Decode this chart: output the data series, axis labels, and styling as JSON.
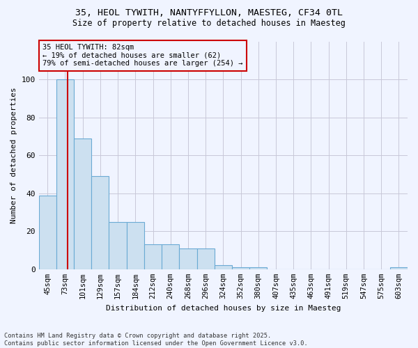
{
  "title1": "35, HEOL TYWITH, NANTYFFYLLON, MAESTEG, CF34 0TL",
  "title2": "Size of property relative to detached houses in Maesteg",
  "xlabel": "Distribution of detached houses by size in Maesteg",
  "ylabel": "Number of detached properties",
  "categories": [
    "45sqm",
    "73sqm",
    "101sqm",
    "129sqm",
    "157sqm",
    "184sqm",
    "212sqm",
    "240sqm",
    "268sqm",
    "296sqm",
    "324sqm",
    "352sqm",
    "380sqm",
    "407sqm",
    "435sqm",
    "463sqm",
    "491sqm",
    "519sqm",
    "547sqm",
    "575sqm",
    "603sqm"
  ],
  "values": [
    39,
    100,
    69,
    49,
    25,
    25,
    13,
    13,
    11,
    11,
    2,
    1,
    1,
    0,
    0,
    0,
    0,
    0,
    0,
    0,
    1
  ],
  "bar_color": "#cce0f0",
  "bar_edge_color": "#6aaad4",
  "vline_color": "#cc0000",
  "vline_pos": 1,
  "annotation_text": "35 HEOL TYWITH: 82sqm\n← 19% of detached houses are smaller (62)\n79% of semi-detached houses are larger (254) →",
  "annotation_box_color": "#cc0000",
  "ylim": [
    0,
    120
  ],
  "yticks": [
    0,
    20,
    40,
    60,
    80,
    100
  ],
  "footer": "Contains HM Land Registry data © Crown copyright and database right 2025.\nContains public sector information licensed under the Open Government Licence v3.0.",
  "bg_color": "#f0f4ff"
}
